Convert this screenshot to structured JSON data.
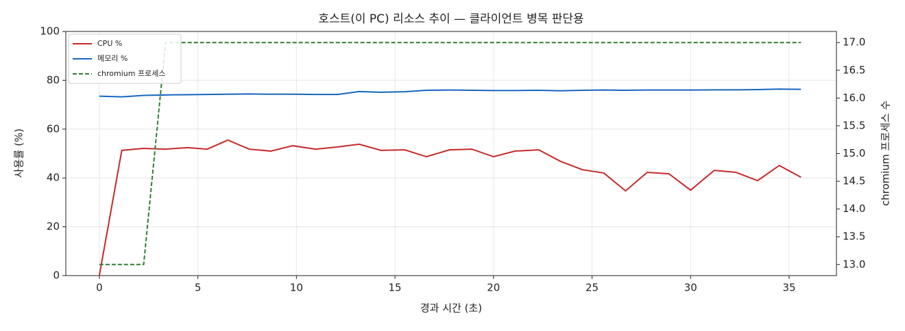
{
  "chart_data": {
    "type": "line",
    "title": "호스트(이 PC) 리소스 추이 — 클라이언트 병목 판단용",
    "x_label": "경과 시간 (초)",
    "y_label": "사용률 (%)",
    "y2_label": "chromium 프로세스 수",
    "x": [
      0,
      1.14,
      2.25,
      3.36,
      4.47,
      5.48,
      6.52,
      7.6,
      8.7,
      9.81,
      10.96,
      12.1,
      13.18,
      14.3,
      15.5,
      16.6,
      17.76,
      18.9,
      20.0,
      21.1,
      22.3,
      23.4,
      24.5,
      25.6,
      26.7,
      27.8,
      28.9,
      30.0,
      31.2,
      32.3,
      33.4,
      34.5,
      35.6
    ],
    "series": [
      {
        "name": "CPU %",
        "color": "#c62828",
        "linestyle": "solid",
        "values": [
          0,
          51.3,
          52.1,
          51.8,
          52.4,
          51.8,
          55.5,
          51.8,
          51.0,
          53.2,
          51.8,
          52.7,
          53.8,
          51.3,
          51.5,
          48.7,
          51.5,
          51.8,
          48.7,
          51.0,
          51.5,
          46.8,
          43.4,
          42.0,
          34.7,
          42.3,
          41.7,
          35.0,
          43.1,
          42.3,
          38.9,
          45.1,
          40.3
        ]
      },
      {
        "name": "메모리 %",
        "color": "#1565c0",
        "linestyle": "solid",
        "values": [
          73.5,
          73.2,
          73.8,
          74.0,
          74.1,
          74.2,
          74.3,
          74.4,
          74.3,
          74.3,
          74.2,
          74.2,
          75.4,
          75.1,
          75.3,
          75.9,
          76.0,
          75.9,
          75.8,
          75.8,
          75.9,
          75.7,
          75.9,
          76.0,
          75.9,
          76.0,
          76.0,
          76.0,
          76.1,
          76.1,
          76.2,
          76.4,
          76.3
        ]
      },
      {
        "name": "chromium 프로세스",
        "color": "#2e7d32",
        "linestyle": "dashed",
        "axis": "y2",
        "values": [
          13,
          13,
          13,
          17,
          17,
          17,
          17,
          17,
          17,
          17,
          17,
          17,
          17,
          17,
          17,
          17,
          17,
          17,
          17,
          17,
          17,
          17,
          17,
          17,
          17,
          17,
          17,
          17,
          17,
          17,
          17,
          17,
          17
        ]
      }
    ],
    "xlim": [
      -1.7,
      37.4
    ],
    "xticks": [
      0,
      5,
      10,
      15,
      20,
      25,
      30,
      35
    ],
    "ylim": [
      0,
      100
    ],
    "yticks": [
      0,
      20,
      40,
      60,
      80,
      100
    ],
    "y2lim": [
      12.8,
      17.2
    ],
    "y2ticks": [
      {
        "value": 13,
        "label": "13.0"
      },
      13.5,
      {
        "value": 14,
        "label": "14.0"
      },
      14.5,
      {
        "value": 15,
        "label": "15.0"
      },
      15.5,
      {
        "value": 16,
        "label": "16.0"
      },
      16.5,
      {
        "value": 17,
        "label": "17.0"
      }
    ],
    "grid": true,
    "legend": "upper left"
  }
}
